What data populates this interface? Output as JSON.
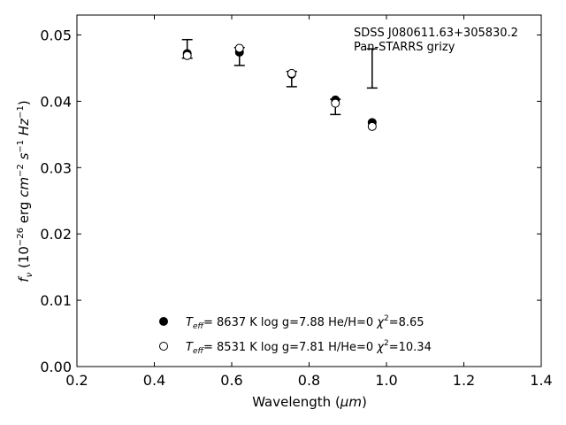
{
  "chart_data": {
    "type": "scatter",
    "annotation": [
      "SDSS J080611.63+305830.2",
      "Pan-STARRS grizy"
    ],
    "xlabel": {
      "text": "Wavelength (",
      "unit": "μm",
      "close": ")"
    },
    "ylabel": {
      "text": "f",
      "sub": "ν",
      "pre": " (10",
      "exp": "−26",
      "post": " erg ",
      "unit1": "cm",
      "exp1": "−2",
      "unit2": " s",
      "exp2": "−1",
      "unit3": " Hz",
      "exp3": "−1",
      "close": ")"
    },
    "xlim": [
      0.2,
      1.4
    ],
    "ylim": [
      0.0,
      0.053
    ],
    "xticks": [
      "0.2",
      "0.4",
      "0.6",
      "0.8",
      "1.0",
      "1.2",
      "1.4"
    ],
    "xtick_values": [
      0.2,
      0.4,
      0.6,
      0.8,
      1.0,
      1.2,
      1.4
    ],
    "yticks": [
      "0.00",
      "0.01",
      "0.02",
      "0.03",
      "0.04",
      "0.05"
    ],
    "ytick_values": [
      0.0,
      0.01,
      0.02,
      0.03,
      0.04,
      0.05
    ],
    "grid": false,
    "observed": [
      {
        "x": 0.485,
        "y": 0.0467,
        "yerr_low": 0.0465,
        "yerr_high": 0.0493
      },
      {
        "x": 0.62,
        "y": 0.0481,
        "yerr_low": 0.0454,
        "yerr_high": 0.0481
      },
      {
        "x": 0.755,
        "y": 0.0444,
        "yerr_low": 0.0422,
        "yerr_high": 0.0445
      },
      {
        "x": 0.868,
        "y": 0.0402,
        "yerr_low": 0.038,
        "yerr_high": 0.0403
      },
      {
        "x": 0.963,
        "y": 0.0479,
        "yerr_low": 0.042,
        "yerr_high": 0.0479
      }
    ],
    "series": [
      {
        "marker": "filled",
        "x": [
          0.485,
          0.62,
          0.755,
          0.868,
          0.963
        ],
        "y": [
          0.0472,
          0.0474,
          0.0441,
          0.0402,
          0.0368
        ]
      },
      {
        "marker": "open",
        "x": [
          0.485,
          0.62,
          0.755,
          0.868,
          0.963
        ],
        "y": [
          0.0469,
          0.048,
          0.0442,
          0.0397,
          0.0362
        ]
      }
    ],
    "legend": [
      {
        "marker": "filled",
        "teff_label": "T",
        "teff_sub": "eff",
        "text": "=  8637 K  log g=7.88  He/H=0  ",
        "chi": "χ",
        "chi_exp": "2",
        "chi_val": "=8.65"
      },
      {
        "marker": "open",
        "teff_label": "T",
        "teff_sub": "eff",
        "text": "=  8531 K  log g=7.81  H/He=0  ",
        "chi": "χ",
        "chi_exp": "2",
        "chi_val": "=10.34"
      }
    ],
    "legend_placement": "lower-center"
  }
}
